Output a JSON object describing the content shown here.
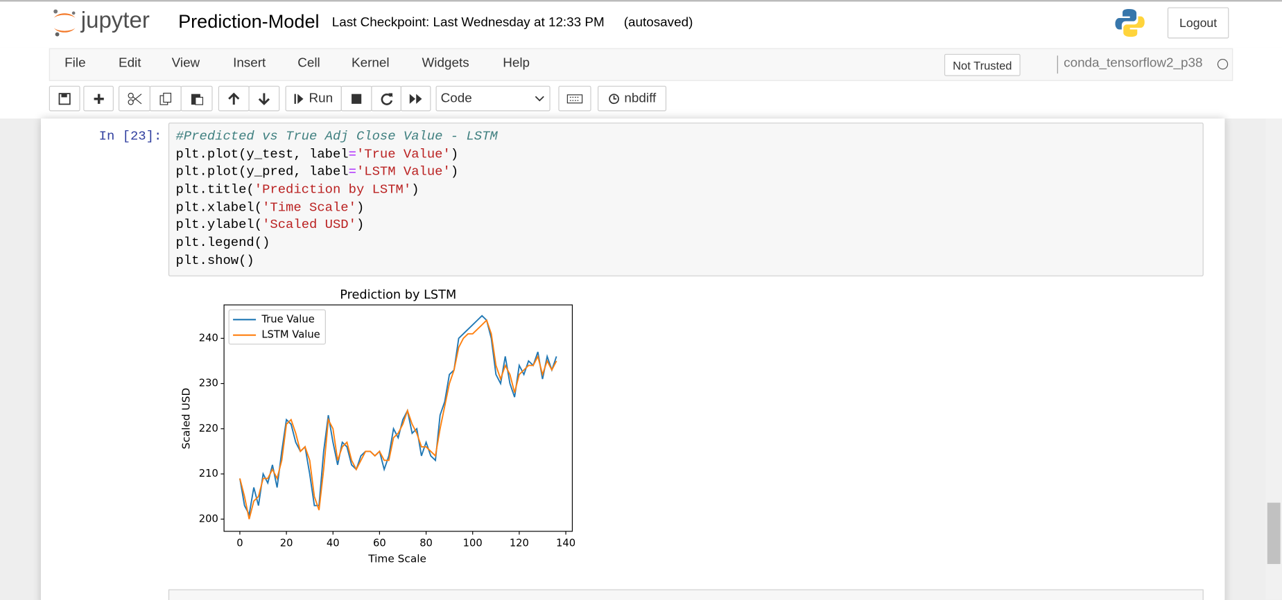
{
  "header": {
    "logo": "jupyter",
    "notebook_name": "Prediction-Model",
    "checkpoint": "Last Checkpoint: Last Wednesday at 12:33 PM",
    "autosave": "(autosaved)",
    "logout": "Logout"
  },
  "menu": {
    "items": [
      "File",
      "Edit",
      "View",
      "Insert",
      "Cell",
      "Kernel",
      "Widgets",
      "Help"
    ],
    "trust": "Not Trusted",
    "kernel": "conda_tensorflow2_p38"
  },
  "toolbar": {
    "run": "Run",
    "cell_type": "Code",
    "nbdiff": "nbdiff"
  },
  "cell": {
    "prompt": "In [23]:",
    "code": [
      [
        "#Predicted vs True Adj Close Value - LSTM"
      ],
      [
        "plt.plot(y_test, label",
        "=",
        "'True Value'",
        ")"
      ],
      [
        "plt.plot(y_pred, label",
        "=",
        "'LSTM Value'",
        ")"
      ],
      [
        "plt.title(",
        "'Prediction by LSTM'",
        ")"
      ],
      [
        "plt.xlabel(",
        "'Time Scale'",
        ")"
      ],
      [
        "plt.ylabel(",
        "'Scaled USD'",
        ")"
      ],
      [
        "plt.legend()"
      ],
      [
        "plt.show()"
      ]
    ]
  },
  "chart_data": {
    "type": "line",
    "title": "Prediction by LSTM",
    "x_label": "Time Scale",
    "y_label": "Scaled USD",
    "x": [
      0,
      2,
      4,
      6,
      8,
      10,
      12,
      14,
      16,
      18,
      20,
      22,
      24,
      26,
      28,
      30,
      32,
      34,
      36,
      38,
      40,
      42,
      44,
      46,
      48,
      50,
      52,
      54,
      56,
      58,
      60,
      62,
      64,
      66,
      68,
      70,
      72,
      74,
      76,
      78,
      80,
      82,
      84,
      86,
      88,
      90,
      92,
      94,
      96,
      98,
      100,
      102,
      104,
      106,
      108,
      110,
      112,
      114,
      116,
      118,
      120,
      122,
      124,
      126,
      128,
      130,
      132,
      134,
      136
    ],
    "series": [
      {
        "name": "True Value",
        "color": "#1f77b4",
        "values": [
          209,
          203,
          201,
          207,
          203,
          210,
          208,
          212,
          207,
          215,
          222,
          221,
          217,
          215,
          216,
          210,
          203,
          203,
          215,
          223,
          217,
          212,
          217,
          216,
          212,
          211,
          214,
          215,
          215,
          214,
          215,
          211,
          214,
          220,
          218,
          222,
          224,
          219,
          220,
          214,
          217,
          214,
          213,
          223,
          226,
          232,
          233,
          240,
          241,
          242,
          243,
          244,
          245,
          244,
          240,
          232,
          230,
          236,
          230,
          227,
          234,
          232,
          235,
          234,
          237,
          231,
          236,
          233,
          236
        ]
      },
      {
        "name": "LSTM Value",
        "color": "#ff7f0e",
        "values": [
          209,
          205,
          200,
          204,
          205,
          209,
          209,
          211,
          209,
          213,
          221,
          222,
          219,
          215,
          216,
          213,
          205,
          202,
          211,
          222,
          220,
          213,
          216,
          217,
          213,
          211,
          213,
          215,
          215,
          214,
          215,
          213,
          213,
          218,
          219,
          221,
          224,
          221,
          219,
          216,
          216,
          215,
          214,
          220,
          225,
          230,
          233,
          238,
          240,
          241,
          241,
          242,
          243,
          244,
          241,
          234,
          231,
          234,
          232,
          228,
          232,
          233,
          234,
          234,
          236,
          232,
          235,
          233,
          235
        ]
      }
    ],
    "xlim": [
      -6.8,
      142.8
    ],
    "ylim": [
      197.3,
      247.4
    ],
    "xticks": [
      0,
      20,
      40,
      60,
      80,
      100,
      120,
      140
    ],
    "yticks": [
      200,
      210,
      220,
      230,
      240
    ],
    "legend": "upper left"
  }
}
